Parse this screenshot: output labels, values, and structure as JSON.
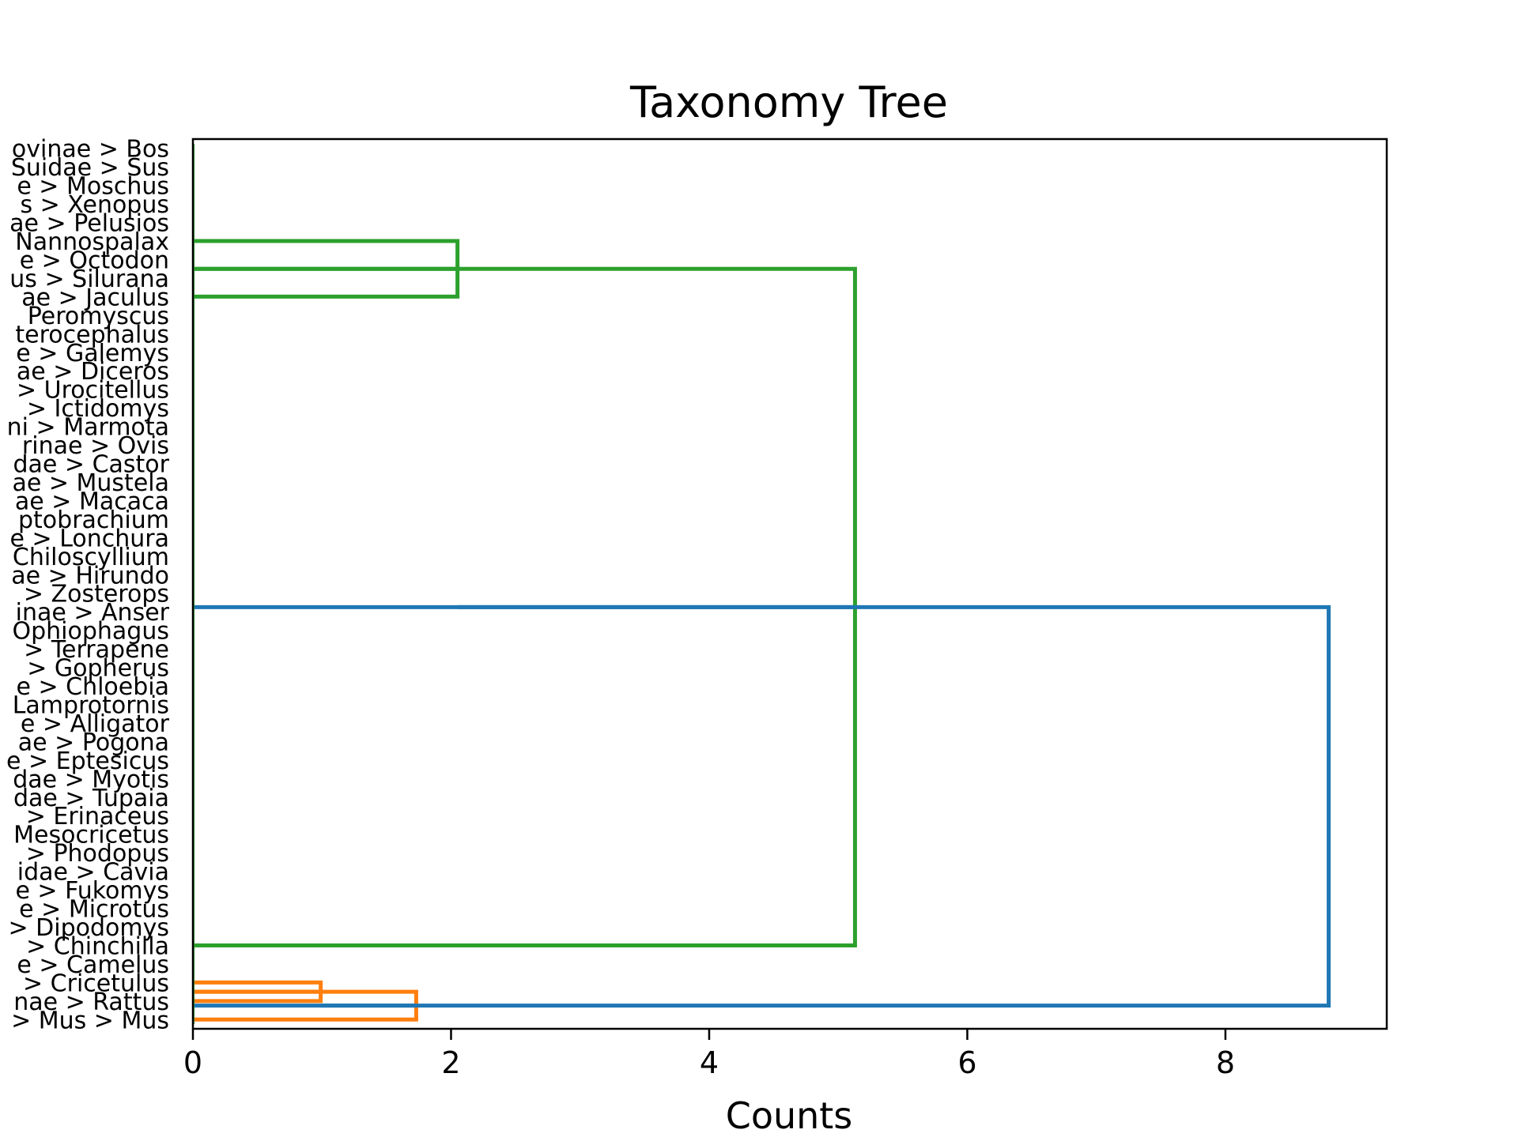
{
  "chart_data": {
    "type": "dendrogram",
    "orientation": "horizontal",
    "title": "Taxonomy Tree",
    "xlabel": "Counts",
    "ylabel": "",
    "xlim": [
      0,
      9.25
    ],
    "xticks": [
      0,
      2,
      4,
      6,
      8
    ],
    "grid": false,
    "leaf_labels": [
      "ovinae > Bos",
      "Suidae > Sus",
      "e > Moschus",
      "s > Xenopus",
      "ae > Pelusios",
      "Nannospalax",
      "e > Octodon",
      "us > Silurana",
      "ae > Jaculus",
      "Peromyscus",
      "terocephalus",
      "e > Galemys",
      "ae > Diceros",
      "> Urocitellus",
      "> Ictidomys",
      "ni > Marmota",
      "rinae > Ovis",
      "dae > Castor",
      "ae > Mustela",
      "ae > Macaca",
      "ptobrachium",
      "e > Lonchura",
      "Chiloscyllium",
      "ae > Hirundo",
      "> Zosterops",
      "inae > Anser",
      "Ophiophagus",
      "> Terrapene",
      "> Gopherus",
      "e > Chloebia",
      "Lamprotornis",
      "e > Alligator",
      "ae > Pogona",
      "e > Eptesicus",
      "dae > Myotis",
      "dae > Tupaia",
      "> Erinaceus",
      "Mesocricetus",
      "> Phodopus",
      "idae > Cavia",
      "e > Fukomys",
      "e > Microtus",
      "> Dipodomys",
      "> Chinchilla",
      "e > Camelus",
      "> Cricetulus",
      "nae > Rattus",
      "> Mus > Mus"
    ],
    "colors": {
      "green": "#2ca02c",
      "orange": "#ff7f0e",
      "blue": "#1f77b4"
    },
    "links": [
      {
        "color": "green",
        "y": [
          5,
          8
        ],
        "x": 2.05
      },
      {
        "color": "green",
        "y": [
          6.5,
          43
        ],
        "x": 5.13
      },
      {
        "color": "orange",
        "y": [
          45,
          46
        ],
        "x": 0.99
      },
      {
        "color": "orange",
        "y": [
          45.5,
          47
        ],
        "x": 1.73
      },
      {
        "color": "blue",
        "y": [
          24.75,
          46.25
        ],
        "x": 8.8
      }
    ]
  }
}
